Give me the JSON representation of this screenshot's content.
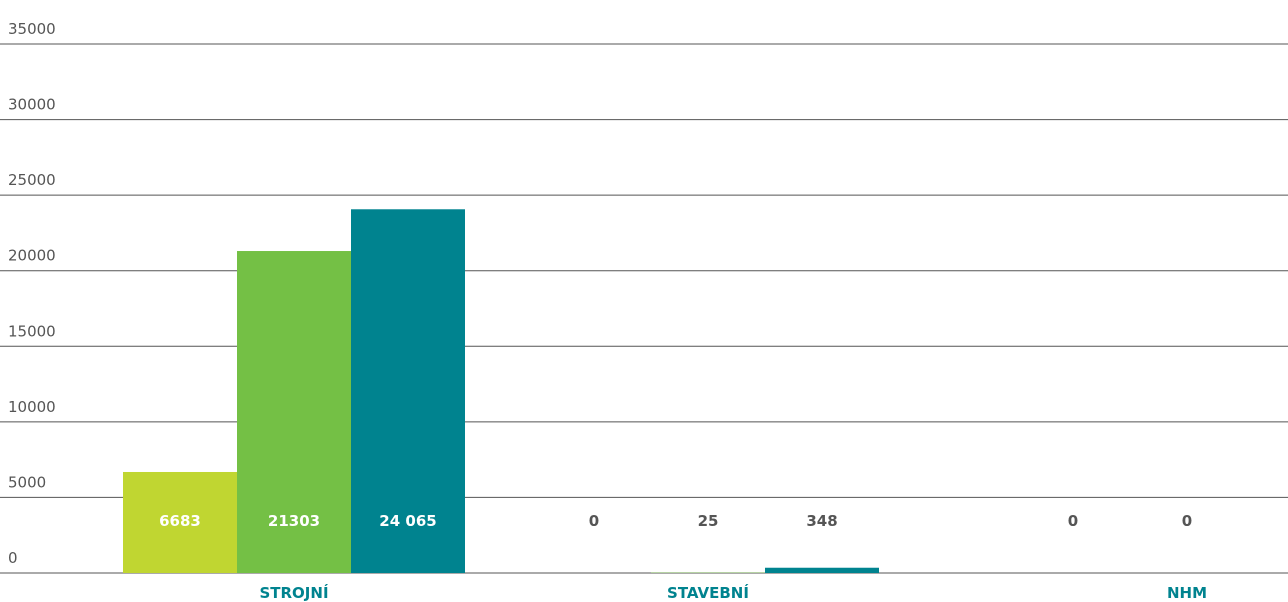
{
  "chart_data": {
    "type": "bar",
    "categories": [
      "STROJNÍ",
      "STAVEBNÍ",
      "NHM"
    ],
    "series": [
      {
        "values": [
          6683,
          0,
          0
        ],
        "labels": [
          "6683",
          "0",
          "0"
        ],
        "color": "#c0d631"
      },
      {
        "values": [
          21303,
          25,
          0
        ],
        "labels": [
          "21303",
          "25",
          "0"
        ],
        "color": "#74c045"
      },
      {
        "values": [
          24065,
          348,
          0
        ],
        "labels": [
          "24 065",
          "348",
          "0"
        ],
        "color": "#00838f"
      }
    ],
    "y_ticks": [
      "0",
      "5000",
      "10000",
      "15000",
      "20000",
      "25000",
      "30000",
      "35000"
    ],
    "ylim": [
      0,
      35000
    ],
    "grid": true,
    "legend": "none",
    "colors": {
      "category_label": "#00838f",
      "label_on_bar": "#ffffff",
      "label_off_bar": "#555555",
      "gridline": "#555555"
    }
  }
}
